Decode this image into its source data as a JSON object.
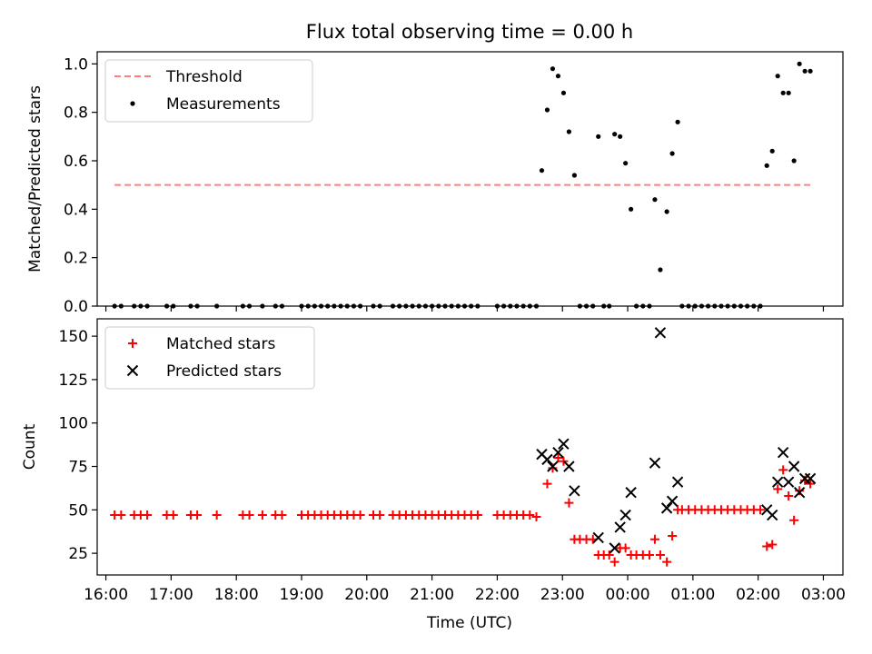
{
  "figure": {
    "title": "Flux total observing time = 0.00 h"
  },
  "chart_data": [
    {
      "type": "scatter",
      "panel": "top",
      "ylabel": "Matched/Predicted stars",
      "ylim": [
        0,
        1.05
      ],
      "yticks": [
        0.0,
        0.2,
        0.4,
        0.6,
        0.8,
        1.0
      ],
      "ytick_labels": [
        "0.0",
        "0.2",
        "0.4",
        "0.6",
        "0.8",
        "1.0"
      ],
      "xlim": [
        "15:52",
        "03:18"
      ],
      "legend": {
        "placement": "top-left",
        "entries": [
          {
            "label": "Threshold",
            "marker": "dashed-line",
            "color": "#ff7f7f"
          },
          {
            "label": "Measurements",
            "marker": "dot",
            "color": "#000000"
          }
        ]
      },
      "series": [
        {
          "name": "Threshold",
          "style": "dashed-line",
          "color": "#ff7f7f",
          "x": [
            "16:08",
            "02:48"
          ],
          "y": [
            0.5,
            0.5
          ]
        },
        {
          "name": "Measurements",
          "style": "dot",
          "color": "#000000",
          "points": [
            [
              "16:08",
              0
            ],
            [
              "16:14",
              0
            ],
            [
              "16:26",
              0
            ],
            [
              "16:32",
              0
            ],
            [
              "16:38",
              0
            ],
            [
              "16:56",
              0
            ],
            [
              "17:02",
              0
            ],
            [
              "17:18",
              0
            ],
            [
              "17:24",
              0
            ],
            [
              "17:42",
              0
            ],
            [
              "18:06",
              0
            ],
            [
              "18:12",
              0
            ],
            [
              "18:24",
              0
            ],
            [
              "18:36",
              0
            ],
            [
              "18:42",
              0
            ],
            [
              "19:00",
              0
            ],
            [
              "19:06",
              0
            ],
            [
              "19:12",
              0
            ],
            [
              "19:18",
              0
            ],
            [
              "19:24",
              0
            ],
            [
              "19:30",
              0
            ],
            [
              "19:36",
              0
            ],
            [
              "19:42",
              0
            ],
            [
              "19:48",
              0
            ],
            [
              "19:54",
              0
            ],
            [
              "20:06",
              0
            ],
            [
              "20:12",
              0
            ],
            [
              "20:24",
              0
            ],
            [
              "20:30",
              0
            ],
            [
              "20:36",
              0
            ],
            [
              "20:42",
              0
            ],
            [
              "20:48",
              0
            ],
            [
              "20:54",
              0
            ],
            [
              "21:00",
              0
            ],
            [
              "21:06",
              0
            ],
            [
              "21:12",
              0
            ],
            [
              "21:18",
              0
            ],
            [
              "21:24",
              0
            ],
            [
              "21:30",
              0
            ],
            [
              "21:36",
              0
            ],
            [
              "21:42",
              0
            ],
            [
              "22:00",
              0
            ],
            [
              "22:06",
              0
            ],
            [
              "22:12",
              0
            ],
            [
              "22:18",
              0
            ],
            [
              "22:24",
              0
            ],
            [
              "22:30",
              0
            ],
            [
              "22:36",
              0
            ],
            [
              "22:41",
              0.56
            ],
            [
              "22:46",
              0.81
            ],
            [
              "22:51",
              0.98
            ],
            [
              "22:56",
              0.95
            ],
            [
              "23:01",
              0.88
            ],
            [
              "23:06",
              0.72
            ],
            [
              "23:11",
              0.54
            ],
            [
              "23:16",
              0
            ],
            [
              "23:22",
              0
            ],
            [
              "23:28",
              0
            ],
            [
              "23:33",
              0.7
            ],
            [
              "23:38",
              0
            ],
            [
              "23:43",
              0
            ],
            [
              "23:48",
              0.71
            ],
            [
              "23:53",
              0.7
            ],
            [
              "23:58",
              0.59
            ],
            [
              "00:03",
              0.4
            ],
            [
              "00:08",
              0
            ],
            [
              "00:14",
              0
            ],
            [
              "00:20",
              0
            ],
            [
              "00:25",
              0.44
            ],
            [
              "00:30",
              0.15
            ],
            [
              "00:36",
              0.39
            ],
            [
              "00:41",
              0.63
            ],
            [
              "00:46",
              0.76
            ],
            [
              "00:50",
              0
            ],
            [
              "00:56",
              0
            ],
            [
              "01:02",
              0
            ],
            [
              "01:08",
              0
            ],
            [
              "01:14",
              0
            ],
            [
              "01:20",
              0
            ],
            [
              "01:26",
              0
            ],
            [
              "01:32",
              0
            ],
            [
              "01:38",
              0
            ],
            [
              "01:44",
              0
            ],
            [
              "01:50",
              0
            ],
            [
              "01:56",
              0
            ],
            [
              "02:02",
              0
            ],
            [
              "02:08",
              0.58
            ],
            [
              "02:13",
              0.64
            ],
            [
              "02:18",
              0.95
            ],
            [
              "02:23",
              0.88
            ],
            [
              "02:28",
              0.88
            ],
            [
              "02:33",
              0.6
            ],
            [
              "02:38",
              1.0
            ],
            [
              "02:43",
              0.97
            ],
            [
              "02:48",
              0.97
            ]
          ]
        }
      ]
    },
    {
      "type": "scatter",
      "panel": "bottom",
      "xlabel": "Time (UTC)",
      "ylabel": "Count",
      "ylim": [
        12.5,
        160
      ],
      "yticks": [
        25,
        50,
        75,
        100,
        125,
        150
      ],
      "ytick_labels": [
        "25",
        "50",
        "75",
        "100",
        "125",
        "150"
      ],
      "xlim": [
        "15:52",
        "03:18"
      ],
      "xticks": [
        "16:00",
        "17:00",
        "18:00",
        "19:00",
        "20:00",
        "21:00",
        "22:00",
        "23:00",
        "00:00",
        "01:00",
        "02:00",
        "03:00"
      ],
      "xtick_labels": [
        "16:00",
        "17:00",
        "18:00",
        "19:00",
        "20:00",
        "21:00",
        "22:00",
        "23:00",
        "00:00",
        "01:00",
        "02:00",
        "03:00"
      ],
      "legend": {
        "placement": "top-left",
        "entries": [
          {
            "label": "Matched stars",
            "marker": "plus",
            "color": "#ff0000"
          },
          {
            "label": "Predicted stars",
            "marker": "x",
            "color": "#000000"
          }
        ]
      },
      "series": [
        {
          "name": "Matched stars",
          "style": "plus",
          "color": "#ff0000",
          "points": [
            [
              "16:08",
              47
            ],
            [
              "16:14",
              47
            ],
            [
              "16:26",
              47
            ],
            [
              "16:32",
              47
            ],
            [
              "16:38",
              47
            ],
            [
              "16:56",
              47
            ],
            [
              "17:02",
              47
            ],
            [
              "17:18",
              47
            ],
            [
              "17:24",
              47
            ],
            [
              "17:42",
              47
            ],
            [
              "18:06",
              47
            ],
            [
              "18:12",
              47
            ],
            [
              "18:24",
              47
            ],
            [
              "18:36",
              47
            ],
            [
              "18:42",
              47
            ],
            [
              "19:00",
              47
            ],
            [
              "19:06",
              47
            ],
            [
              "19:12",
              47
            ],
            [
              "19:18",
              47
            ],
            [
              "19:24",
              47
            ],
            [
              "19:30",
              47
            ],
            [
              "19:36",
              47
            ],
            [
              "19:42",
              47
            ],
            [
              "19:48",
              47
            ],
            [
              "19:54",
              47
            ],
            [
              "20:06",
              47
            ],
            [
              "20:12",
              47
            ],
            [
              "20:24",
              47
            ],
            [
              "20:30",
              47
            ],
            [
              "20:36",
              47
            ],
            [
              "20:42",
              47
            ],
            [
              "20:48",
              47
            ],
            [
              "20:54",
              47
            ],
            [
              "21:00",
              47
            ],
            [
              "21:06",
              47
            ],
            [
              "21:12",
              47
            ],
            [
              "21:18",
              47
            ],
            [
              "21:24",
              47
            ],
            [
              "21:30",
              47
            ],
            [
              "21:36",
              47
            ],
            [
              "21:42",
              47
            ],
            [
              "22:00",
              47
            ],
            [
              "22:06",
              47
            ],
            [
              "22:12",
              47
            ],
            [
              "22:18",
              47
            ],
            [
              "22:24",
              47
            ],
            [
              "22:30",
              47
            ],
            [
              "22:36",
              46
            ],
            [
              "22:46",
              65
            ],
            [
              "22:51",
              74
            ],
            [
              "22:56",
              80
            ],
            [
              "23:01",
              78
            ],
            [
              "23:06",
              54
            ],
            [
              "23:11",
              33
            ],
            [
              "23:16",
              33
            ],
            [
              "23:22",
              33
            ],
            [
              "23:28",
              33
            ],
            [
              "23:33",
              24
            ],
            [
              "23:38",
              24
            ],
            [
              "23:43",
              24
            ],
            [
              "23:48",
              20
            ],
            [
              "23:53",
              28
            ],
            [
              "23:58",
              28
            ],
            [
              "00:03",
              24
            ],
            [
              "00:08",
              24
            ],
            [
              "00:14",
              24
            ],
            [
              "00:20",
              24
            ],
            [
              "00:25",
              33
            ],
            [
              "00:30",
              24
            ],
            [
              "00:36",
              20
            ],
            [
              "00:41",
              35
            ],
            [
              "00:46",
              50
            ],
            [
              "00:50",
              50
            ],
            [
              "00:56",
              50
            ],
            [
              "01:02",
              50
            ],
            [
              "01:08",
              50
            ],
            [
              "01:14",
              50
            ],
            [
              "01:20",
              50
            ],
            [
              "01:26",
              50
            ],
            [
              "01:32",
              50
            ],
            [
              "01:38",
              50
            ],
            [
              "01:44",
              50
            ],
            [
              "01:50",
              50
            ],
            [
              "01:56",
              50
            ],
            [
              "02:02",
              50
            ],
            [
              "02:08",
              29
            ],
            [
              "02:13",
              30
            ],
            [
              "02:18",
              62
            ],
            [
              "02:23",
              73
            ],
            [
              "02:28",
              58
            ],
            [
              "02:33",
              44
            ],
            [
              "02:38",
              61
            ],
            [
              "02:43",
              67
            ],
            [
              "02:48",
              65
            ]
          ]
        },
        {
          "name": "Predicted stars",
          "style": "x",
          "color": "#000000",
          "points": [
            [
              "22:41",
              82
            ],
            [
              "22:46",
              79
            ],
            [
              "22:51",
              75
            ],
            [
              "22:56",
              83
            ],
            [
              "23:01",
              88
            ],
            [
              "23:06",
              75
            ],
            [
              "23:11",
              61
            ],
            [
              "23:33",
              34
            ],
            [
              "23:48",
              28
            ],
            [
              "23:53",
              40
            ],
            [
              "23:58",
              47
            ],
            [
              "00:03",
              60
            ],
            [
              "00:25",
              77
            ],
            [
              "00:30",
              152
            ],
            [
              "00:36",
              51
            ],
            [
              "00:41",
              55
            ],
            [
              "00:46",
              66
            ],
            [
              "02:08",
              50
            ],
            [
              "02:13",
              47
            ],
            [
              "02:18",
              66
            ],
            [
              "02:23",
              83
            ],
            [
              "02:28",
              66
            ],
            [
              "02:33",
              75
            ],
            [
              "02:38",
              60
            ],
            [
              "02:43",
              68
            ],
            [
              "02:48",
              68
            ]
          ]
        }
      ]
    }
  ]
}
